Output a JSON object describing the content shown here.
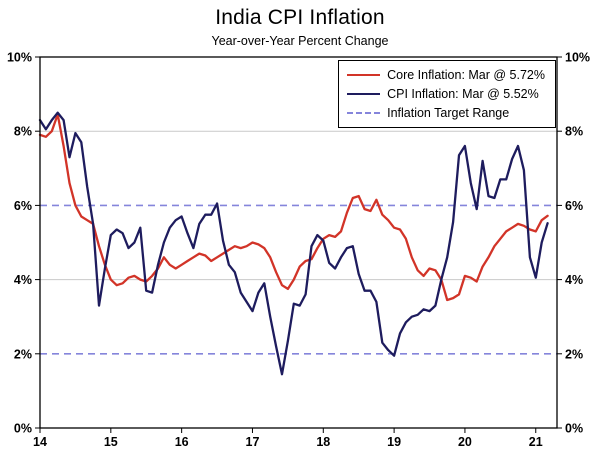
{
  "chart_data": {
    "type": "line",
    "title": "India CPI Inflation",
    "subtitle": "Year-over-Year Percent Change",
    "x_description": "Monthly observations, Jan 2014 through Mar 2021",
    "xlim": [
      2014,
      2021.3
    ],
    "ylim": [
      0,
      10
    ],
    "yticks": [
      0,
      2,
      4,
      6,
      8,
      10
    ],
    "ytick_labels": [
      "0%",
      "2%",
      "4%",
      "6%",
      "8%",
      "10%"
    ],
    "xticks": [
      2014,
      2015,
      2016,
      2017,
      2018,
      2019,
      2020,
      2021
    ],
    "xtick_labels": [
      "14",
      "15",
      "16",
      "17",
      "18",
      "19",
      "20",
      "21"
    ],
    "grid": {
      "solid_y": [
        4,
        8
      ],
      "color": "#c9c9c9"
    },
    "target_range": {
      "label": "Inflation Target Range",
      "y_values": [
        2,
        6
      ],
      "color": "#8585db"
    },
    "legend_position": "top-right",
    "series": [
      {
        "name": "Core Inflation: Mar @ 5.72%",
        "color": "#d23428",
        "start": "2014-01",
        "values": [
          7.9,
          7.85,
          8.0,
          8.45,
          7.6,
          6.6,
          6.0,
          5.7,
          5.6,
          5.5,
          4.9,
          4.4,
          4.0,
          3.85,
          3.9,
          4.05,
          4.1,
          4.0,
          3.95,
          4.1,
          4.3,
          4.6,
          4.4,
          4.3,
          4.4,
          4.5,
          4.6,
          4.7,
          4.65,
          4.5,
          4.6,
          4.7,
          4.8,
          4.9,
          4.85,
          4.9,
          5.0,
          4.95,
          4.85,
          4.6,
          4.2,
          3.85,
          3.75,
          4.0,
          4.35,
          4.5,
          4.55,
          4.85,
          5.1,
          5.2,
          5.15,
          5.3,
          5.8,
          6.2,
          6.25,
          5.9,
          5.85,
          6.15,
          5.75,
          5.6,
          5.4,
          5.35,
          5.1,
          4.6,
          4.25,
          4.1,
          4.3,
          4.25,
          4.0,
          3.45,
          3.5,
          3.6,
          4.1,
          4.05,
          3.95,
          4.35,
          4.6,
          4.9,
          5.1,
          5.3,
          5.4,
          5.5,
          5.45,
          5.35,
          5.3,
          5.6,
          5.72
        ]
      },
      {
        "name": "CPI Inflation: Mar @ 5.52%",
        "color": "#1e1c5e",
        "start": "2014-01",
        "values": [
          8.3,
          8.05,
          8.3,
          8.5,
          8.3,
          7.3,
          7.95,
          7.7,
          6.5,
          5.5,
          3.3,
          4.3,
          5.2,
          5.35,
          5.25,
          4.85,
          5.0,
          5.4,
          3.7,
          3.65,
          4.4,
          5.0,
          5.4,
          5.6,
          5.7,
          5.25,
          4.85,
          5.5,
          5.75,
          5.75,
          6.05,
          5.05,
          4.4,
          4.2,
          3.65,
          3.4,
          3.15,
          3.65,
          3.9,
          3.0,
          2.2,
          1.45,
          2.35,
          3.35,
          3.3,
          3.6,
          4.9,
          5.2,
          5.05,
          4.45,
          4.3,
          4.6,
          4.85,
          4.9,
          4.15,
          3.7,
          3.7,
          3.4,
          2.3,
          2.1,
          1.95,
          2.55,
          2.85,
          3.0,
          3.05,
          3.2,
          3.15,
          3.3,
          4.0,
          4.6,
          5.55,
          7.35,
          7.6,
          6.6,
          5.9,
          7.2,
          6.25,
          6.2,
          6.7,
          6.7,
          7.25,
          7.6,
          6.95,
          4.6,
          4.05,
          5.0,
          5.52
        ]
      }
    ]
  }
}
